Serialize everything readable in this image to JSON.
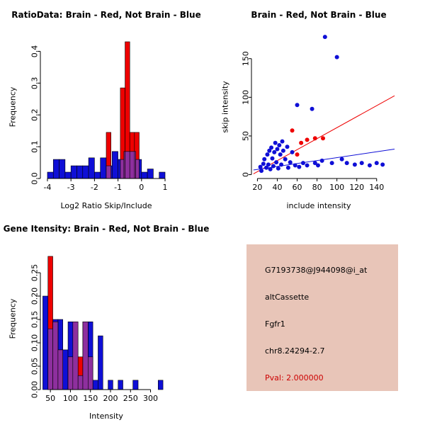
{
  "colors": {
    "red": "#ee0000",
    "blue": "#0f0fd6",
    "overlap": "#8e2f9e",
    "info_bg": "#e8c5b8",
    "pval": "#cc0000",
    "axis": "#000000"
  },
  "chart_data": [
    {
      "id": "ratio_hist",
      "type": "bar",
      "title": "RatioData: Brain - Red, Not Brain - Blue",
      "xlabel": "Log2 Ratio Skip/Include",
      "ylabel": "Frequency",
      "xlim": [
        -4.3,
        1.15
      ],
      "ylim": [
        0,
        0.45
      ],
      "grid": false,
      "xticks": [
        -4,
        -3,
        -2,
        -1,
        0,
        1
      ],
      "xtick_labels": [
        "-4",
        "-3",
        "-2",
        "-1",
        "0",
        "1"
      ],
      "yticks": [
        0.0,
        0.1,
        0.2,
        0.3,
        0.4
      ],
      "ytick_labels": [
        "0.0",
        "0.1",
        "0.2",
        "0.3",
        "0.4"
      ],
      "series": [
        {
          "name": "Not Brain",
          "color": "blue",
          "bins": [
            [
              -4.0,
              -3.75,
              0.02
            ],
            [
              -3.75,
              -3.5,
              0.06
            ],
            [
              -3.5,
              -3.25,
              0.06
            ],
            [
              -3.25,
              -3.0,
              0.02
            ],
            [
              -3.0,
              -2.75,
              0.04
            ],
            [
              -2.75,
              -2.5,
              0.04
            ],
            [
              -2.5,
              -2.25,
              0.04
            ],
            [
              -2.25,
              -2.0,
              0.065
            ],
            [
              -2.0,
              -1.75,
              0.02
            ],
            [
              -1.75,
              -1.5,
              0.065
            ],
            [
              -1.5,
              -1.25,
              0.04
            ],
            [
              -1.25,
              -1.0,
              0.085
            ],
            [
              -1.0,
              -0.75,
              0.06
            ],
            [
              -0.75,
              -0.5,
              0.085
            ],
            [
              -0.5,
              -0.25,
              0.085
            ],
            [
              -0.25,
              0.0,
              0.06
            ],
            [
              0.0,
              0.25,
              0.02
            ],
            [
              0.25,
              0.5,
              0.03
            ],
            [
              0.75,
              1.0,
              0.02
            ]
          ]
        },
        {
          "name": "Brain",
          "color": "red",
          "bins": [
            [
              -1.5,
              -1.3,
              0.145
            ],
            [
              -0.9,
              -0.7,
              0.285
            ],
            [
              -0.7,
              -0.5,
              0.43
            ],
            [
              -0.5,
              -0.3,
              0.145
            ],
            [
              -0.3,
              -0.1,
              0.145
            ]
          ]
        }
      ]
    },
    {
      "id": "scatter",
      "type": "scatter",
      "title": "Brain - Red, Not Brain - Blue",
      "xlabel": "include intensity",
      "ylabel": "skip intensity",
      "xlim": [
        14,
        158
      ],
      "ylim": [
        -5,
        180
      ],
      "grid": false,
      "xticks": [
        20,
        40,
        60,
        80,
        100,
        120,
        140
      ],
      "xtick_labels": [
        "20",
        "40",
        "60",
        "80",
        "100",
        "120",
        "140"
      ],
      "yticks": [
        0,
        50,
        100,
        150
      ],
      "ytick_labels": [
        "0",
        "50",
        "100",
        "150"
      ],
      "series": [
        {
          "name": "Not Brain",
          "color": "blue",
          "points": [
            [
              23,
              10
            ],
            [
              24,
              5
            ],
            [
              26,
              14
            ],
            [
              27,
              20
            ],
            [
              29,
              9
            ],
            [
              30,
              26
            ],
            [
              31,
              13
            ],
            [
              32,
              31
            ],
            [
              33,
              7
            ],
            [
              34,
              35
            ],
            [
              35,
              21
            ],
            [
              36,
              11
            ],
            [
              37,
              29
            ],
            [
              38,
              41
            ],
            [
              39,
              16
            ],
            [
              40,
              33
            ],
            [
              41,
              8
            ],
            [
              42,
              38
            ],
            [
              43,
              26
            ],
            [
              44,
              13
            ],
            [
              45,
              43
            ],
            [
              46,
              31
            ],
            [
              48,
              20
            ],
            [
              50,
              36
            ],
            [
              51,
              9
            ],
            [
              53,
              16
            ],
            [
              55,
              29
            ],
            [
              58,
              12
            ],
            [
              60,
              90
            ],
            [
              62,
              10
            ],
            [
              66,
              15
            ],
            [
              70,
              12
            ],
            [
              75,
              85
            ],
            [
              78,
              15
            ],
            [
              81,
              12
            ],
            [
              85,
              18
            ],
            [
              88,
              178
            ],
            [
              95,
              15
            ],
            [
              100,
              152
            ],
            [
              105,
              20
            ],
            [
              110,
              15
            ],
            [
              118,
              13
            ],
            [
              125,
              15
            ],
            [
              133,
              12
            ],
            [
              140,
              15
            ],
            [
              146,
              13
            ]
          ]
        },
        {
          "name": "Brain",
          "color": "red",
          "points": [
            [
              55,
              57
            ],
            [
              60,
              26
            ],
            [
              64,
              41
            ],
            [
              70,
              45
            ],
            [
              78,
              47
            ],
            [
              86,
              47
            ]
          ]
        }
      ],
      "lines": [
        {
          "color": "red",
          "x1": 16,
          "y1": 1,
          "x2": 158,
          "y2": 102
        },
        {
          "color": "blue",
          "x1": 16,
          "y1": 6,
          "x2": 158,
          "y2": 33
        }
      ]
    },
    {
      "id": "gene_hist",
      "type": "bar",
      "title": "Gene Itensity: Brain - Red, Not Brain - Blue",
      "xlabel": "Intensity",
      "ylabel": "Frequency",
      "xlim": [
        25,
        345
      ],
      "ylim": [
        0,
        0.3
      ],
      "grid": false,
      "xticks": [
        50,
        100,
        150,
        200,
        250,
        300
      ],
      "xtick_labels": [
        "50",
        "100",
        "150",
        "200",
        "250",
        "300"
      ],
      "yticks": [
        0.0,
        0.05,
        0.1,
        0.15,
        0.2,
        0.25
      ],
      "ytick_labels": [
        "0.00",
        "0.05",
        "0.10",
        "0.15",
        "0.20",
        "0.25"
      ],
      "series": [
        {
          "name": "Not Brain",
          "color": "blue",
          "bins": [
            [
              31,
              44,
              0.2
            ],
            [
              44,
              56,
              0.13
            ],
            [
              56,
              69,
              0.15
            ],
            [
              69,
              81,
              0.15
            ],
            [
              81,
              94,
              0.085
            ],
            [
              94,
              106,
              0.145
            ],
            [
              106,
              119,
              0.145
            ],
            [
              119,
              131,
              0.03
            ],
            [
              131,
              144,
              0.145
            ],
            [
              144,
              156,
              0.145
            ],
            [
              156,
              169,
              0.02
            ],
            [
              169,
              181,
              0.115
            ],
            [
              194,
              206,
              0.02
            ],
            [
              219,
              231,
              0.02
            ],
            [
              256,
              269,
              0.02
            ],
            [
              319,
              331,
              0.02
            ]
          ]
        },
        {
          "name": "Brain",
          "color": "red",
          "bins": [
            [
              44,
              56,
              0.285
            ],
            [
              56,
              69,
              0.145
            ],
            [
              69,
              81,
              0.085
            ],
            [
              94,
              106,
              0.07
            ],
            [
              106,
              119,
              0.145
            ],
            [
              119,
              131,
              0.07
            ],
            [
              131,
              144,
              0.145
            ],
            [
              144,
              156,
              0.07
            ]
          ]
        }
      ]
    }
  ],
  "info_panel": {
    "lines": [
      {
        "text": "G7193738@J944098@i_at",
        "color": "black"
      },
      {
        "text": "altCassette",
        "color": "black"
      },
      {
        "text": "Fgfr1",
        "color": "black"
      },
      {
        "text": "chr8.24294-2.7",
        "color": "black"
      },
      {
        "text": "Pval: 2.000000",
        "color": "red"
      }
    ]
  }
}
